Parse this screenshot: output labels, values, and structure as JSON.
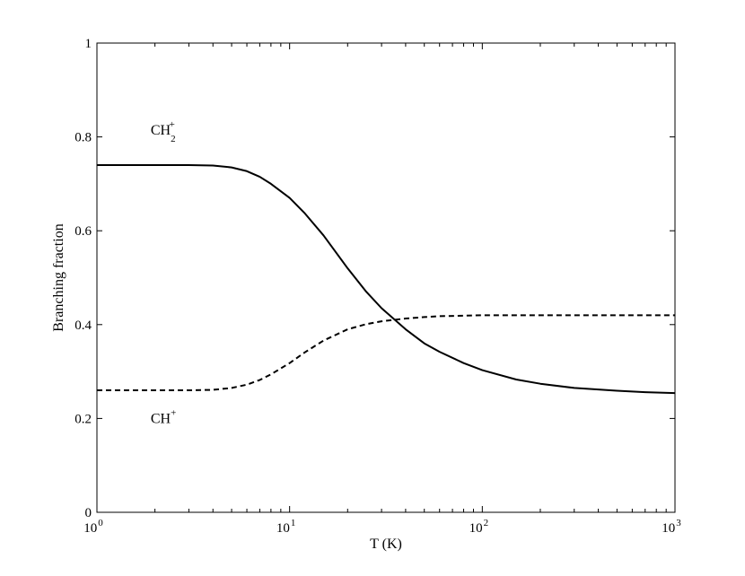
{
  "chart_data": {
    "type": "line",
    "xlabel": "T (K)",
    "ylabel": "Branching fraction",
    "xscale": "log",
    "xlim": [
      1,
      1000
    ],
    "ylim": [
      0,
      1
    ],
    "grid": false,
    "x_ticks": [
      {
        "value": 1,
        "base": "10",
        "exp": "0"
      },
      {
        "value": 10,
        "base": "10",
        "exp": "1"
      },
      {
        "value": 100,
        "base": "10",
        "exp": "2"
      },
      {
        "value": 1000,
        "base": "10",
        "exp": "3"
      }
    ],
    "y_ticks": [
      {
        "value": 0,
        "label": "0"
      },
      {
        "value": 0.2,
        "label": "0.2"
      },
      {
        "value": 0.4,
        "label": "0.4"
      },
      {
        "value": 0.6,
        "label": "0.6"
      },
      {
        "value": 0.8,
        "label": "0.8"
      },
      {
        "value": 1,
        "label": "1"
      }
    ],
    "series": [
      {
        "style": "solid",
        "x": [
          1,
          2,
          3,
          4,
          5,
          6,
          7,
          8,
          10,
          12,
          15,
          20,
          25,
          30,
          40,
          50,
          60,
          80,
          100,
          150,
          200,
          300,
          500,
          700,
          1000
        ],
        "y": [
          0.74,
          0.74,
          0.74,
          0.739,
          0.735,
          0.727,
          0.715,
          0.7,
          0.67,
          0.637,
          0.59,
          0.52,
          0.47,
          0.435,
          0.39,
          0.36,
          0.342,
          0.318,
          0.303,
          0.283,
          0.274,
          0.265,
          0.259,
          0.256,
          0.254
        ]
      },
      {
        "style": "dashed",
        "x": [
          1,
          2,
          3,
          4,
          5,
          6,
          7,
          8,
          10,
          12,
          15,
          20,
          25,
          30,
          40,
          50,
          60,
          80,
          100,
          150,
          200,
          300,
          500,
          700,
          1000
        ],
        "y": [
          0.26,
          0.26,
          0.26,
          0.261,
          0.265,
          0.272,
          0.282,
          0.294,
          0.318,
          0.341,
          0.366,
          0.39,
          0.401,
          0.407,
          0.413,
          0.416,
          0.418,
          0.419,
          0.42,
          0.42,
          0.42,
          0.42,
          0.42,
          0.42,
          0.42
        ]
      }
    ],
    "annotations": [
      {
        "base": "CH",
        "sub": "2",
        "sup": "+",
        "x": 1.9,
        "y": 0.805
      },
      {
        "base": "CH",
        "sub": "",
        "sup": "+",
        "x": 1.9,
        "y": 0.19
      }
    ]
  }
}
